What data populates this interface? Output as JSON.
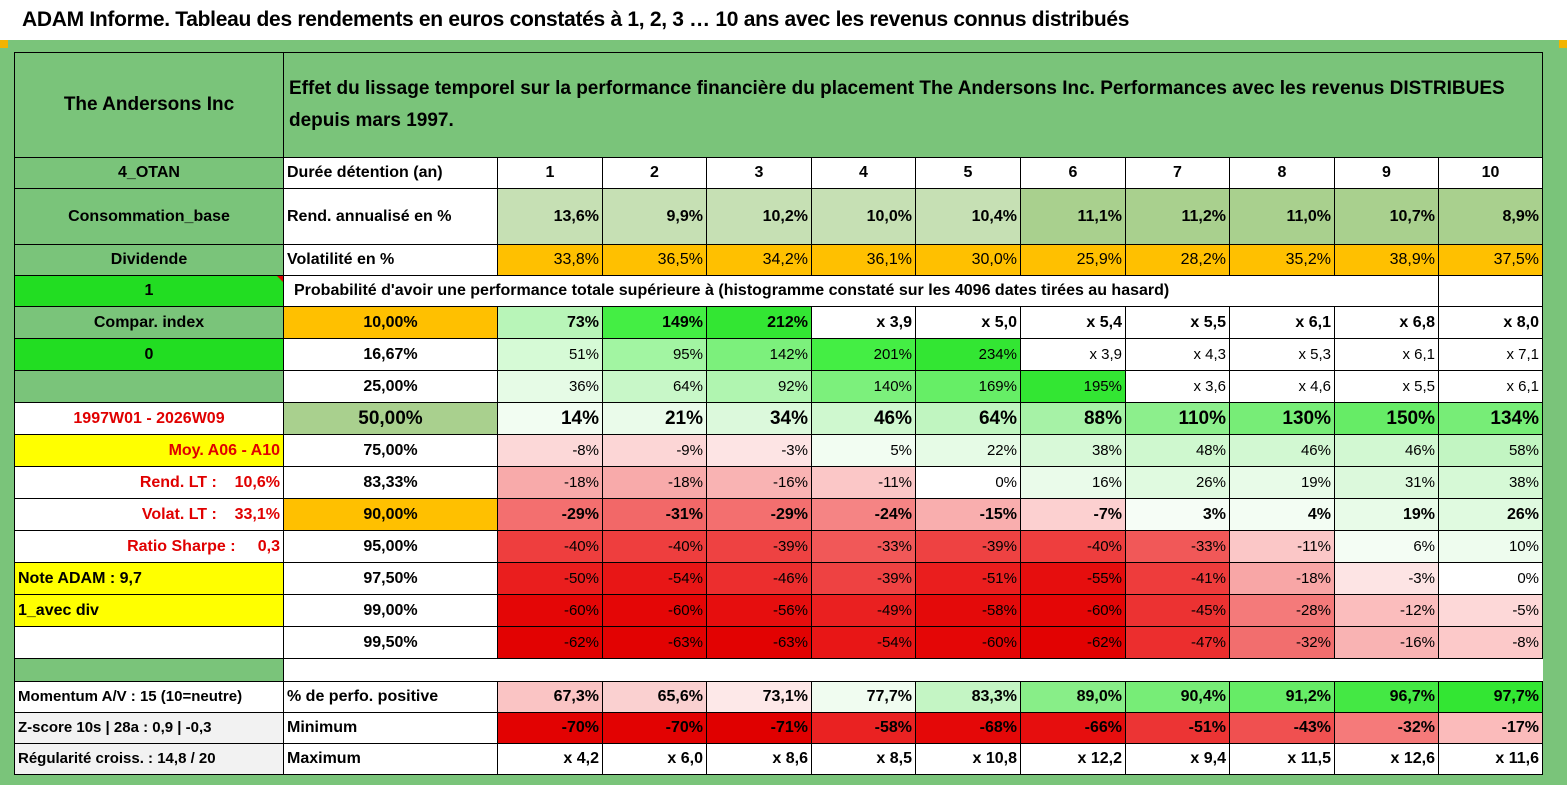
{
  "title": "ADAM Informe. Tableau des rendements en euros constatés à 1, 2, 3 … 10 ans avec les revenus connus distribués",
  "header": {
    "name": "The Andersons Inc",
    "description": "Effet du lissage temporel sur la performance financière du placement The Andersons Inc. Performances avec les revenus DISTRIBUES depuis mars 1997."
  },
  "left_labels": {
    "code": "4_OTAN",
    "sector": "Consommation_base",
    "type": "Dividende",
    "flag1": "1",
    "compar": "Compar. index",
    "flag0": "0",
    "period": "1997W01 - 2026W09",
    "moy": "Moy. A06 - A10",
    "rend_lt": "Rend. LT :    10,6%",
    "volat_lt": "Volat. LT :    33,1%",
    "sharpe": "Ratio Sharpe :     0,3",
    "note": "Note ADAM : 9,7",
    "avec_div": "1_avec div",
    "momentum": "Momentum A/V : 15 (10=neutre)",
    "zscore": "Z-score 10s | 28a : 0,9 | -0,3",
    "regularite": "Régularité croiss. : 14,8 / 20"
  },
  "row_labels": {
    "duree": "Durée détention (an)",
    "rend": "Rend. annualisé en %",
    "vol": "Volatilité en %",
    "prob_caption": "Probabilité d'avoir une performance totale supérieure à (histogramme constaté sur les 4096 dates tirées au hasard)",
    "pos": "% de perfo. positive",
    "min": "Minimum",
    "max": "Maximum"
  },
  "years": [
    "1",
    "2",
    "3",
    "4",
    "5",
    "6",
    "7",
    "8",
    "9",
    "10"
  ],
  "rend": [
    "13,6%",
    "9,9%",
    "10,2%",
    "10,0%",
    "10,4%",
    "11,1%",
    "11,2%",
    "11,0%",
    "10,7%",
    "8,9%"
  ],
  "volatility": [
    "33,8%",
    "36,5%",
    "34,2%",
    "36,1%",
    "30,0%",
    "25,9%",
    "28,2%",
    "35,2%",
    "38,9%",
    "37,5%"
  ],
  "probability_rows": [
    {
      "threshold": "10,00%",
      "values": [
        "73%",
        "149%",
        "212%",
        "x 3,9",
        "x 5,0",
        "x 5,4",
        "x 5,5",
        "x 6,1",
        "x 6,8",
        "x 8,0"
      ]
    },
    {
      "threshold": "16,67%",
      "values": [
        "51%",
        "95%",
        "142%",
        "201%",
        "234%",
        "x 3,9",
        "x 4,3",
        "x 5,3",
        "x 6,1",
        "x 7,1"
      ]
    },
    {
      "threshold": "25,00%",
      "values": [
        "36%",
        "64%",
        "92%",
        "140%",
        "169%",
        "195%",
        "x 3,6",
        "x 4,6",
        "x 5,5",
        "x 6,1"
      ]
    },
    {
      "threshold": "50,00%",
      "values": [
        "14%",
        "21%",
        "34%",
        "46%",
        "64%",
        "88%",
        "110%",
        "130%",
        "150%",
        "134%"
      ]
    },
    {
      "threshold": "75,00%",
      "values": [
        "-8%",
        "-9%",
        "-3%",
        "5%",
        "22%",
        "38%",
        "48%",
        "46%",
        "46%",
        "58%"
      ]
    },
    {
      "threshold": "83,33%",
      "values": [
        "-18%",
        "-18%",
        "-16%",
        "-11%",
        "0%",
        "16%",
        "26%",
        "19%",
        "31%",
        "38%"
      ]
    },
    {
      "threshold": "90,00%",
      "values": [
        "-29%",
        "-31%",
        "-29%",
        "-24%",
        "-15%",
        "-7%",
        "3%",
        "4%",
        "19%",
        "26%"
      ]
    },
    {
      "threshold": "95,00%",
      "values": [
        "-40%",
        "-40%",
        "-39%",
        "-33%",
        "-39%",
        "-40%",
        "-33%",
        "-11%",
        "6%",
        "10%"
      ]
    },
    {
      "threshold": "97,50%",
      "values": [
        "-50%",
        "-54%",
        "-46%",
        "-39%",
        "-51%",
        "-55%",
        "-41%",
        "-18%",
        "-3%",
        "0%"
      ]
    },
    {
      "threshold": "99,00%",
      "values": [
        "-60%",
        "-60%",
        "-56%",
        "-49%",
        "-58%",
        "-60%",
        "-45%",
        "-28%",
        "-12%",
        "-5%"
      ]
    },
    {
      "threshold": "99,50%",
      "values": [
        "-62%",
        "-63%",
        "-63%",
        "-54%",
        "-60%",
        "-62%",
        "-47%",
        "-32%",
        "-16%",
        "-8%"
      ]
    }
  ],
  "positive_pct": [
    "67,3%",
    "65,6%",
    "73,1%",
    "77,7%",
    "83,3%",
    "89,0%",
    "90,4%",
    "91,2%",
    "96,7%",
    "97,7%"
  ],
  "minimum": [
    "-70%",
    "-70%",
    "-71%",
    "-58%",
    "-68%",
    "-66%",
    "-51%",
    "-43%",
    "-32%",
    "-17%"
  ],
  "maximum": [
    "x 4,2",
    "x 6,0",
    "x 8,6",
    "x 8,5",
    "x 10,8",
    "x 12,2",
    "x 9,4",
    "x 11,5",
    "x 12,6",
    "x 11,6"
  ],
  "colors": {
    "header_green": "#7ac47a",
    "bright_green": "#22dd22",
    "yellow": "#ffff00",
    "orange": "#ffc000",
    "label_red": "#e00000",
    "rend_green_1": "#c6e0b4",
    "rend_green_2": "#a9d08e"
  },
  "cell_colors": {
    "rend": [
      "#c6e0b4",
      "#c6e0b4",
      "#c6e0b4",
      "#c6e0b4",
      "#c6e0b4",
      "#a9d08e",
      "#a9d08e",
      "#a9d08e",
      "#a9d08e",
      "#a9d08e"
    ],
    "volatility": [
      "#ffc000",
      "#ffc000",
      "#ffc000",
      "#ffc000",
      "#ffc000",
      "#ffc000",
      "#ffc000",
      "#ffc000",
      "#ffc000",
      "#ffc000"
    ],
    "probability": [
      [
        "#b8f5b8",
        "#44ee44",
        "#33e633",
        "#ffffff",
        "#ffffff",
        "#ffffff",
        "#ffffff",
        "#ffffff",
        "#ffffff",
        "#ffffff"
      ],
      [
        "#d6fad6",
        "#a2f5a2",
        "#7cf07c",
        "#44ee44",
        "#33e633",
        "#ffffff",
        "#ffffff",
        "#ffffff",
        "#ffffff",
        "#ffffff"
      ],
      [
        "#e6fbe6",
        "#c8f7c8",
        "#b0f5b0",
        "#7cf07c",
        "#66ee66",
        "#33e633",
        "#ffffff",
        "#ffffff",
        "#ffffff",
        "#ffffff"
      ],
      [
        "#f2fdf2",
        "#eafbea",
        "#dcf9dc",
        "#cff8cf",
        "#c0f5c0",
        "#a6f2a6",
        "#8cef8c",
        "#77ed77",
        "#66ec66",
        "#77ed77"
      ],
      [
        "#fcd8d8",
        "#fcd6d6",
        "#fde4e4",
        "#f2fdf2",
        "#e6fbe6",
        "#d8f9d8",
        "#cff8cf",
        "#d2f8d2",
        "#d2f8d2",
        "#c2f5c2"
      ],
      [
        "#f8aaaa",
        "#f8aaaa",
        "#f9b3b3",
        "#fbc7c7",
        "#ffffff",
        "#eafbea",
        "#e0fae0",
        "#e8fbe8",
        "#dcf9dc",
        "#d6f9d6"
      ],
      [
        "#f36f6f",
        "#f26868",
        "#f36f6f",
        "#f58484",
        "#f9aeae",
        "#fcd0d0",
        "#f6fdf6",
        "#f3fdf3",
        "#e8fbe8",
        "#e0fae0"
      ],
      [
        "#ee3e3e",
        "#ee3e3e",
        "#ee4242",
        "#f15858",
        "#ee4242",
        "#ee3e3e",
        "#f15858",
        "#fbc7c7",
        "#f4fdf4",
        "#eefcee"
      ],
      [
        "#ea1e1e",
        "#e81616",
        "#ec2e2e",
        "#ee4242",
        "#ea1e1e",
        "#e60e0e",
        "#ee3c3c",
        "#f8a6a6",
        "#fde4e4",
        "#ffffff"
      ],
      [
        "#e40606",
        "#e40606",
        "#e60e0e",
        "#ea2020",
        "#e40a0a",
        "#e40606",
        "#ec3232",
        "#f47a7a",
        "#fbbdbd",
        "#fdd8d8"
      ],
      [
        "#e20202",
        "#e20202",
        "#e20202",
        "#e81616",
        "#e40606",
        "#e20202",
        "#ec2e2e",
        "#f26e6e",
        "#f9b3b3",
        "#fcc9c9"
      ]
    ],
    "positive_pct": [
      "#fac4c4",
      "#fad0d0",
      "#fde8e8",
      "#f0fcf0",
      "#c4f5c4",
      "#88ee88",
      "#77ed77",
      "#66ec66",
      "#44e844",
      "#33e633"
    ],
    "minimum": [
      "#e20202",
      "#e20202",
      "#e00000",
      "#ea2222",
      "#e40808",
      "#e60e0e",
      "#ec3434",
      "#f05050",
      "#f57a7a",
      "#fbbbbb"
    ]
  }
}
